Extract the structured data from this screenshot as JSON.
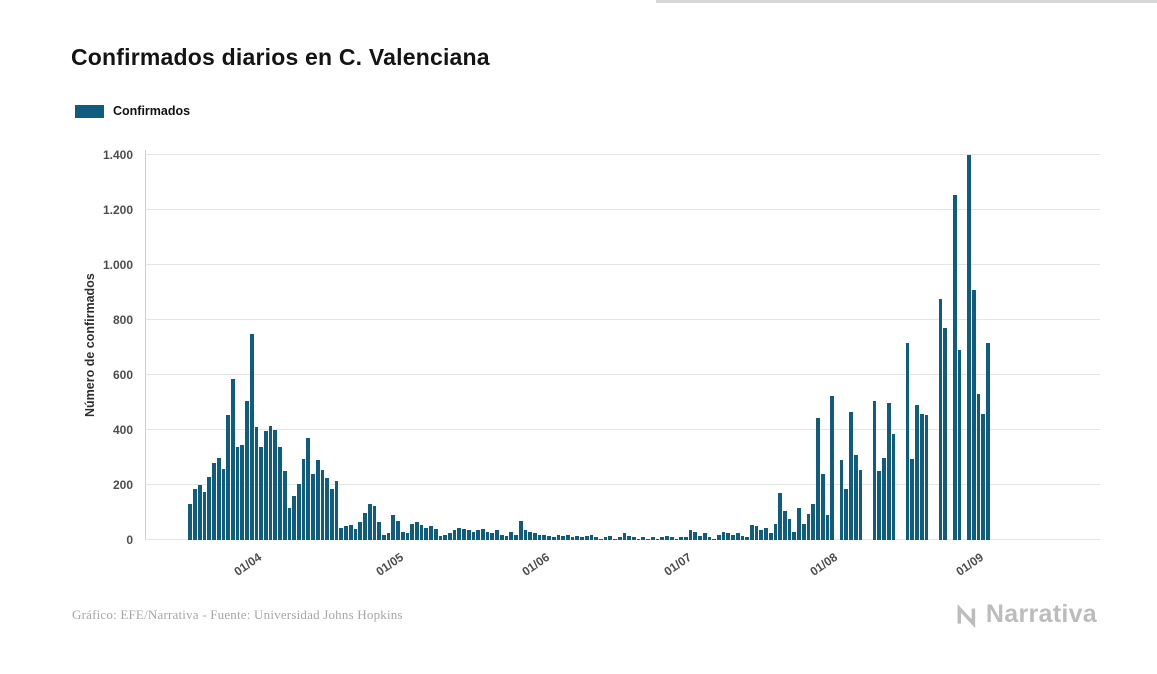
{
  "footer": {
    "source": "Gráfico: EFE/Narrativa - Fuente: Universidad Johns Hopkins",
    "brand": "Narrativa"
  },
  "chart_data": {
    "type": "bar",
    "title": "Confirmados diarios en C. Valenciana",
    "xlabel": "",
    "ylabel": "Número de confirmados",
    "legend": [
      "Confirmados"
    ],
    "legend_position": "top-left",
    "grid": "horizontal",
    "bar_color": "#0f5c7f",
    "ylim": [
      0,
      1400
    ],
    "yticks": [
      {
        "value": 0,
        "label": "0"
      },
      {
        "value": 200,
        "label": "200"
      },
      {
        "value": 400,
        "label": "400"
      },
      {
        "value": 600,
        "label": "600"
      },
      {
        "value": 800,
        "label": "800"
      },
      {
        "value": 1000,
        "label": "1.000"
      },
      {
        "value": 1200,
        "label": "1.200"
      },
      {
        "value": 1400,
        "label": "1.400"
      }
    ],
    "xticks": [
      "01/04",
      "01/05",
      "01/06",
      "01/07",
      "01/08",
      "01/09"
    ],
    "x": [
      "18/03",
      "19/03",
      "20/03",
      "21/03",
      "22/03",
      "23/03",
      "24/03",
      "25/03",
      "26/03",
      "27/03",
      "28/03",
      "29/03",
      "30/03",
      "31/03",
      "01/04",
      "02/04",
      "03/04",
      "04/04",
      "05/04",
      "06/04",
      "07/04",
      "08/04",
      "09/04",
      "10/04",
      "11/04",
      "12/04",
      "13/04",
      "14/04",
      "15/04",
      "16/04",
      "17/04",
      "18/04",
      "19/04",
      "20/04",
      "21/04",
      "22/04",
      "23/04",
      "24/04",
      "25/04",
      "26/04",
      "27/04",
      "28/04",
      "29/04",
      "30/04",
      "01/05",
      "02/05",
      "03/05",
      "04/05",
      "05/05",
      "06/05",
      "07/05",
      "08/05",
      "09/05",
      "10/05",
      "11/05",
      "12/05",
      "13/05",
      "14/05",
      "15/05",
      "16/05",
      "17/05",
      "18/05",
      "19/05",
      "20/05",
      "21/05",
      "22/05",
      "23/05",
      "24/05",
      "25/05",
      "26/05",
      "27/05",
      "28/05",
      "29/05",
      "30/05",
      "31/05",
      "01/06",
      "02/06",
      "03/06",
      "04/06",
      "05/06",
      "06/06",
      "07/06",
      "08/06",
      "09/06",
      "10/06",
      "11/06",
      "12/06",
      "13/06",
      "14/06",
      "15/06",
      "16/06",
      "17/06",
      "18/06",
      "19/06",
      "20/06",
      "21/06",
      "22/06",
      "23/06",
      "24/06",
      "25/06",
      "26/06",
      "27/06",
      "28/06",
      "29/06",
      "30/06",
      "01/07",
      "02/07",
      "03/07",
      "04/07",
      "05/07",
      "06/07",
      "07/07",
      "08/07",
      "09/07",
      "10/07",
      "11/07",
      "12/07",
      "13/07",
      "14/07",
      "15/07",
      "16/07",
      "17/07",
      "18/07",
      "19/07",
      "20/07",
      "21/07",
      "22/07",
      "23/07",
      "24/07",
      "25/07",
      "26/07",
      "27/07",
      "28/07",
      "29/07",
      "30/07",
      "31/07",
      "01/08",
      "02/08",
      "03/08",
      "04/08",
      "05/08",
      "06/08",
      "07/08",
      "08/08",
      "09/08",
      "10/08",
      "11/08",
      "12/08",
      "13/08",
      "14/08",
      "15/08",
      "16/08",
      "17/08",
      "18/08",
      "19/08",
      "20/08",
      "21/08",
      "22/08",
      "23/08",
      "24/08",
      "25/08",
      "26/08",
      "27/08",
      "28/08",
      "29/08",
      "30/08",
      "31/08",
      "01/09",
      "02/09",
      "03/09"
    ],
    "values": [
      130,
      185,
      200,
      175,
      230,
      280,
      300,
      260,
      455,
      585,
      340,
      345,
      505,
      750,
      410,
      340,
      395,
      415,
      400,
      340,
      250,
      115,
      160,
      205,
      295,
      370,
      240,
      290,
      255,
      225,
      185,
      215,
      45,
      50,
      55,
      40,
      65,
      100,
      130,
      125,
      65,
      20,
      25,
      90,
      70,
      30,
      25,
      60,
      65,
      55,
      45,
      50,
      40,
      15,
      20,
      25,
      35,
      45,
      40,
      35,
      30,
      35,
      40,
      30,
      25,
      35,
      20,
      15,
      30,
      20,
      70,
      35,
      30,
      25,
      20,
      20,
      15,
      10,
      20,
      15,
      20,
      10,
      15,
      10,
      15,
      20,
      10,
      5,
      10,
      15,
      5,
      10,
      25,
      15,
      10,
      5,
      10,
      5,
      10,
      5,
      10,
      15,
      10,
      5,
      10,
      10,
      35,
      30,
      15,
      25,
      10,
      5,
      20,
      30,
      25,
      20,
      25,
      15,
      10,
      55,
      50,
      35,
      45,
      25,
      60,
      170,
      105,
      75,
      30,
      115,
      60,
      95,
      130,
      445,
      240,
      90,
      525,
      0,
      290,
      185,
      465,
      310,
      255,
      0,
      0,
      505,
      250,
      300,
      500,
      385,
      0,
      0,
      715,
      295,
      490,
      460,
      455,
      0,
      0,
      875,
      770,
      0,
      1255,
      690,
      0,
      1400,
      910,
      530,
      460,
      715
    ]
  }
}
